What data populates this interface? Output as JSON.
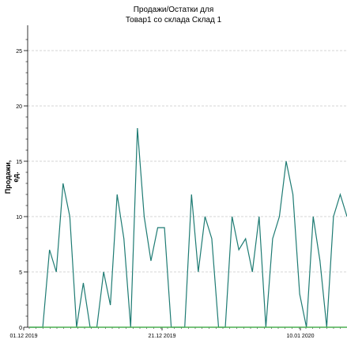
{
  "chart_data": {
    "type": "line",
    "title_line1": "Продажи/Остатки для",
    "title_line2": "Товар1 со склада Склад 1",
    "ylabel": "Продажи, ед.",
    "xlabel": "",
    "ylim": [
      0,
      27
    ],
    "y_ticks": [
      0,
      5,
      10,
      15,
      20,
      25
    ],
    "x_tick_labels": [
      "01.12 2019",
      "21.12 2019",
      "10.01 2020"
    ],
    "grid": "horizontal dashed",
    "series": [
      {
        "color": "#1e7b73",
        "values": [
          0,
          0,
          0,
          7,
          5,
          13,
          10,
          0,
          4,
          0,
          0,
          5,
          2,
          12,
          8,
          0,
          18,
          10,
          6,
          9,
          9,
          0,
          0,
          0,
          12,
          5,
          10,
          8,
          0,
          0,
          10,
          7,
          8,
          5,
          10,
          0,
          8,
          10,
          15,
          12,
          3,
          0,
          10,
          6,
          0,
          10,
          12,
          10
        ]
      },
      {
        "color": "#4caf50",
        "values": [
          0,
          0,
          0,
          0,
          0,
          0,
          0,
          0,
          0,
          0,
          0,
          0,
          0,
          0,
          0,
          0,
          0,
          0,
          0,
          0,
          0,
          0,
          0,
          0,
          0,
          0,
          0,
          0,
          0,
          0,
          0,
          0,
          0,
          0,
          0,
          0,
          0,
          0,
          0,
          0,
          0,
          0,
          0,
          0,
          0,
          0,
          0,
          0
        ]
      }
    ]
  }
}
